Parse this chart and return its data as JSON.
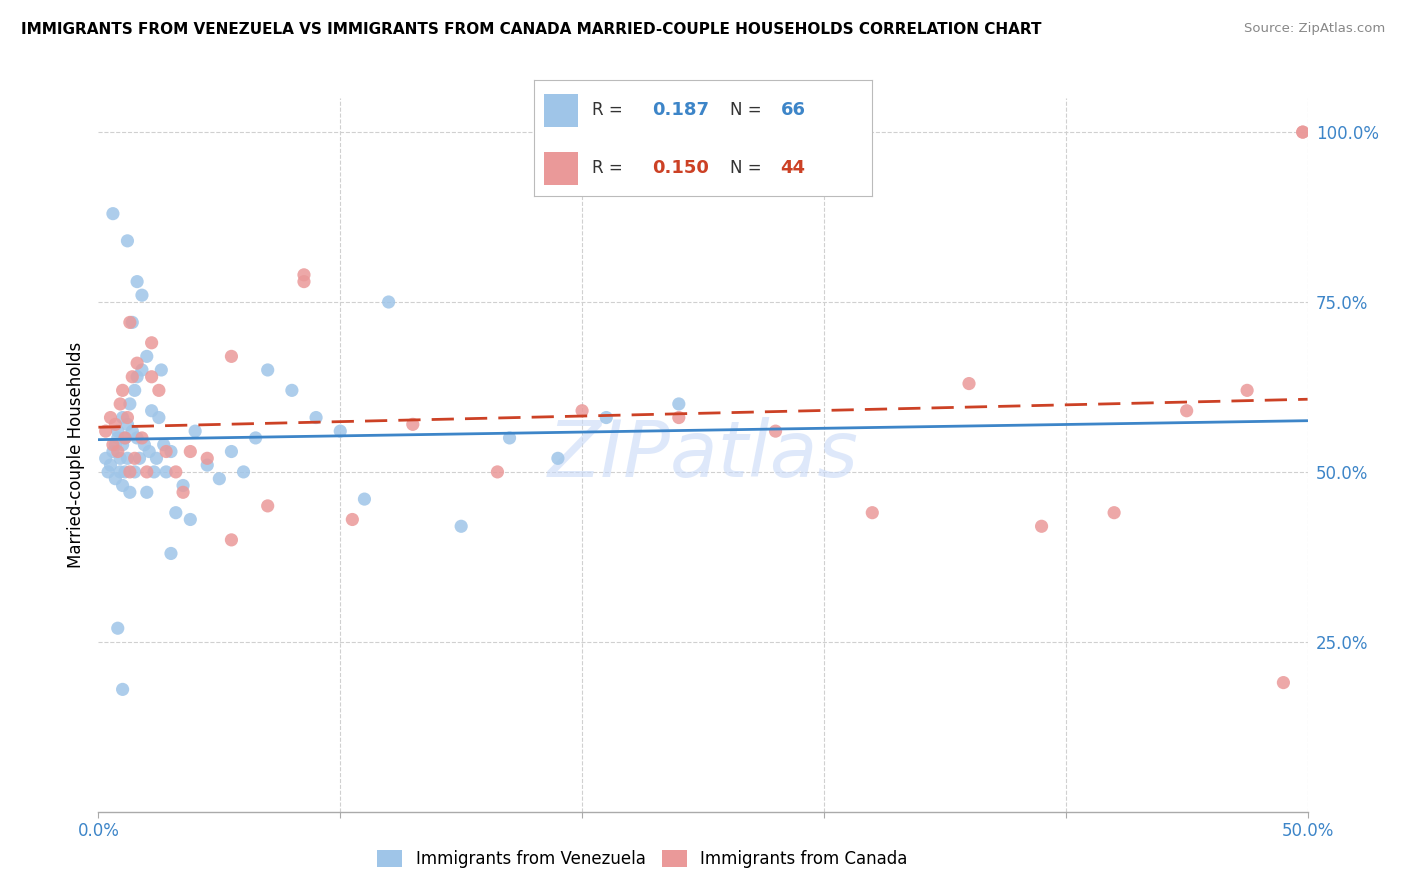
{
  "title": "IMMIGRANTS FROM VENEZUELA VS IMMIGRANTS FROM CANADA MARRIED-COUPLE HOUSEHOLDS CORRELATION CHART",
  "source": "Source: ZipAtlas.com",
  "ylabel": "Married-couple Households",
  "xlim": [
    0,
    0.5
  ],
  "ylim": [
    0,
    1.05
  ],
  "color_blue": "#9fc5e8",
  "color_pink": "#ea9999",
  "color_blue_dark": "#3d85c8",
  "color_pink_dark": "#cc4125",
  "color_line_blue": "#3d85c8",
  "color_line_pink": "#cc4125",
  "watermark": "ZIPatlas",
  "venezuela_x": [
    0.003,
    0.004,
    0.005,
    0.006,
    0.007,
    0.007,
    0.008,
    0.008,
    0.009,
    0.009,
    0.01,
    0.01,
    0.01,
    0.011,
    0.011,
    0.012,
    0.012,
    0.013,
    0.013,
    0.014,
    0.015,
    0.015,
    0.016,
    0.016,
    0.017,
    0.018,
    0.019,
    0.02,
    0.021,
    0.022,
    0.023,
    0.024,
    0.025,
    0.026,
    0.027,
    0.028,
    0.03,
    0.032,
    0.035,
    0.038,
    0.04,
    0.045,
    0.05,
    0.055,
    0.06,
    0.065,
    0.07,
    0.08,
    0.09,
    0.1,
    0.11,
    0.12,
    0.15,
    0.17,
    0.19,
    0.21,
    0.24,
    0.03,
    0.02,
    0.018,
    0.016,
    0.014,
    0.012,
    0.01,
    0.008,
    0.006
  ],
  "venezuela_y": [
    0.52,
    0.5,
    0.51,
    0.53,
    0.54,
    0.49,
    0.56,
    0.55,
    0.5,
    0.52,
    0.54,
    0.48,
    0.58,
    0.5,
    0.55,
    0.52,
    0.57,
    0.47,
    0.6,
    0.56,
    0.62,
    0.5,
    0.64,
    0.55,
    0.52,
    0.65,
    0.54,
    0.47,
    0.53,
    0.59,
    0.5,
    0.52,
    0.58,
    0.65,
    0.54,
    0.5,
    0.53,
    0.44,
    0.48,
    0.43,
    0.56,
    0.51,
    0.49,
    0.53,
    0.5,
    0.55,
    0.65,
    0.62,
    0.58,
    0.56,
    0.46,
    0.75,
    0.42,
    0.55,
    0.52,
    0.58,
    0.6,
    0.38,
    0.67,
    0.76,
    0.78,
    0.72,
    0.84,
    0.18,
    0.27,
    0.88
  ],
  "canada_x": [
    0.003,
    0.005,
    0.006,
    0.007,
    0.008,
    0.009,
    0.01,
    0.011,
    0.012,
    0.013,
    0.014,
    0.015,
    0.016,
    0.018,
    0.02,
    0.022,
    0.025,
    0.028,
    0.032,
    0.038,
    0.045,
    0.055,
    0.07,
    0.085,
    0.105,
    0.13,
    0.165,
    0.2,
    0.24,
    0.28,
    0.32,
    0.36,
    0.39,
    0.42,
    0.45,
    0.475,
    0.49,
    0.498,
    0.498,
    0.013,
    0.022,
    0.035,
    0.055,
    0.085
  ],
  "canada_y": [
    0.56,
    0.58,
    0.54,
    0.57,
    0.53,
    0.6,
    0.62,
    0.55,
    0.58,
    0.5,
    0.64,
    0.52,
    0.66,
    0.55,
    0.5,
    0.64,
    0.62,
    0.53,
    0.5,
    0.53,
    0.52,
    0.67,
    0.45,
    0.78,
    0.43,
    0.57,
    0.5,
    0.59,
    0.58,
    0.56,
    0.44,
    0.63,
    0.42,
    0.44,
    0.59,
    0.62,
    0.19,
    1.0,
    1.0,
    0.72,
    0.69,
    0.47,
    0.4,
    0.79
  ]
}
